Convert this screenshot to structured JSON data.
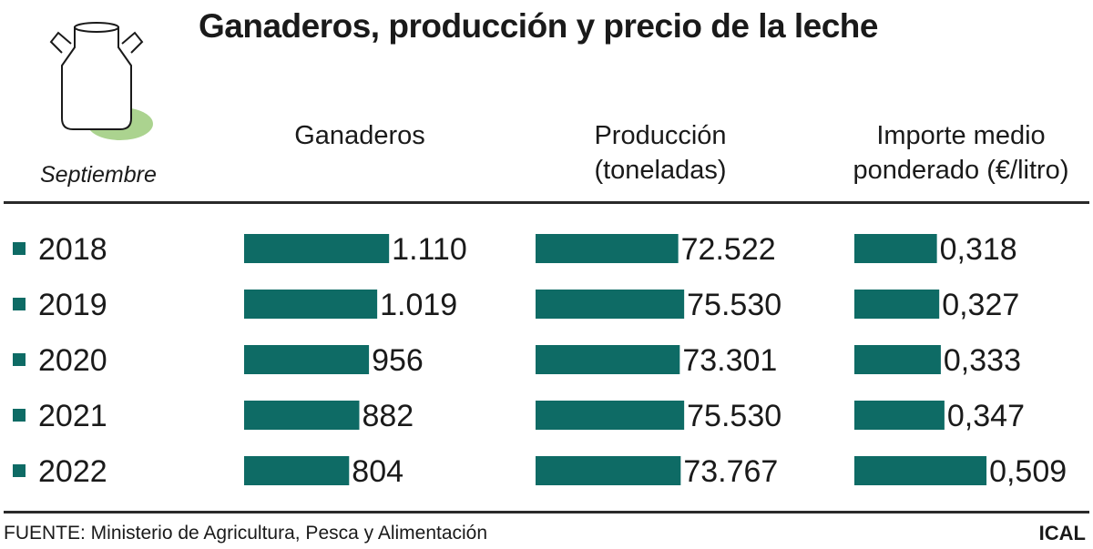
{
  "colors": {
    "bar": "#0e6b65",
    "text": "#1a1a1a",
    "rule": "#2a2a2a",
    "shadow": "#8fc46a"
  },
  "icon": "milk-can-icon",
  "title": "Ganaderos, producción y precio de la leche",
  "period": "Septiembre",
  "columns": {
    "farmers": "Ganaderos",
    "production_line1": "Producción",
    "production_line2": "(toneladas)",
    "price_line1": "Importe medio",
    "price_line2": "ponderado (€/litro)"
  },
  "source": "FUENTE: Ministerio de Agricultura, Pesca y Alimentación",
  "credit": "ICAL",
  "chart_data": {
    "type": "bar",
    "orientation": "horizontal",
    "categories": [
      "2018",
      "2019",
      "2020",
      "2021",
      "2022"
    ],
    "series": [
      {
        "key": "farmers",
        "name": "Ganaderos",
        "values": [
          1110,
          1019,
          956,
          882,
          804
        ],
        "labels": [
          "1.110",
          "1.019",
          "956",
          "882",
          "804"
        ]
      },
      {
        "key": "production",
        "name": "Producción (toneladas)",
        "values": [
          72522,
          75530,
          73301,
          75530,
          73767
        ],
        "labels": [
          "72.522",
          "75.530",
          "73.301",
          "75.530",
          "73.767"
        ]
      },
      {
        "key": "price",
        "name": "Importe medio ponderado (€/litro)",
        "values": [
          0.318,
          0.327,
          0.333,
          0.347,
          0.509
        ],
        "labels": [
          "0,318",
          "0,327",
          "0,333",
          "0,347",
          "0,509"
        ]
      }
    ],
    "legend": "none",
    "grid": false
  }
}
